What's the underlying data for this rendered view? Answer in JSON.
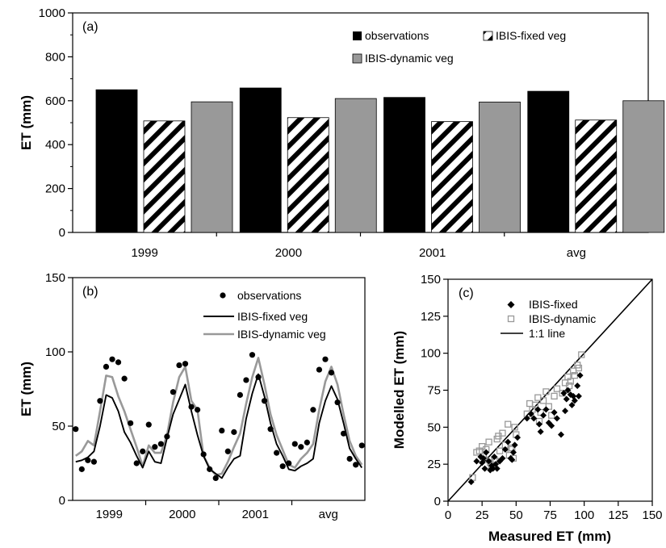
{
  "chart_data": [
    {
      "type": "bar",
      "panel_label": "(a)",
      "ylabel": "ET (mm)",
      "ylim": [
        0,
        1000
      ],
      "yticks": [
        0,
        200,
        400,
        600,
        800,
        1000
      ],
      "categories": [
        "1999",
        "2000",
        "2001",
        "avg"
      ],
      "series": [
        {
          "name": "observations",
          "values": [
            650,
            658,
            615,
            643
          ],
          "color": "#000000",
          "fill": "solid"
        },
        {
          "name": "IBIS-fixed veg",
          "values": [
            508,
            523,
            505,
            512
          ],
          "color": "#000000",
          "fill": "diagonal-hatch"
        },
        {
          "name": "IBIS-dynamic veg",
          "values": [
            595,
            610,
            594,
            600
          ],
          "color": "#999999",
          "fill": "solid"
        }
      ],
      "legend": "top-right"
    },
    {
      "type": "line",
      "panel_label": "(b)",
      "ylabel": "ET (mm)",
      "ylim": [
        0,
        150
      ],
      "yticks": [
        0,
        50,
        100,
        150
      ],
      "xtick_labels": [
        "1999",
        "2000",
        "2001",
        "avg"
      ],
      "x_months": 48,
      "series": [
        {
          "name": "observations",
          "kind": "scatter",
          "color": "#000000",
          "values": [
            48,
            21,
            27,
            26,
            67,
            90,
            95,
            93,
            82,
            52,
            25,
            33,
            51,
            36,
            38,
            43,
            73,
            91,
            92,
            63,
            61,
            31,
            21,
            15,
            47,
            33,
            46,
            71,
            81,
            98,
            83,
            67,
            48,
            32,
            23,
            25,
            38,
            36,
            39,
            61,
            88,
            95,
            86,
            66,
            45,
            28,
            24,
            37
          ]
        },
        {
          "name": "IBIS-fixed veg",
          "kind": "line",
          "color": "#000000",
          "values": [
            26,
            27,
            29,
            33,
            50,
            71,
            69,
            60,
            46,
            39,
            30,
            22,
            33,
            26,
            25,
            42,
            58,
            68,
            78,
            60,
            44,
            30,
            21,
            18,
            15,
            22,
            28,
            30,
            55,
            72,
            85,
            70,
            52,
            38,
            30,
            21,
            20,
            23,
            25,
            28,
            52,
            67,
            77,
            68,
            52,
            35,
            28,
            22
          ]
        },
        {
          "name": "IBIS-dynamic veg",
          "kind": "line",
          "color": "#999999",
          "values": [
            30,
            33,
            40,
            37,
            60,
            84,
            83,
            70,
            60,
            48,
            36,
            23,
            37,
            32,
            32,
            44,
            66,
            83,
            90,
            67,
            61,
            30,
            22,
            17,
            18,
            26,
            36,
            45,
            65,
            83,
            96,
            78,
            58,
            44,
            34,
            24,
            22,
            28,
            32,
            38,
            61,
            80,
            90,
            78,
            58,
            40,
            30,
            24
          ]
        }
      ],
      "legend": "top-right"
    },
    {
      "type": "scatter",
      "panel_label": "(c)",
      "xlabel": "Measured ET (mm)",
      "ylabel": "Modelled ET (mm)",
      "xlim": [
        0,
        150
      ],
      "ylim": [
        0,
        150
      ],
      "xticks": [
        0,
        25,
        50,
        75,
        100,
        125,
        150
      ],
      "yticks": [
        0,
        25,
        50,
        75,
        100,
        125,
        150
      ],
      "series": [
        {
          "name": "IBIS-fixed",
          "marker": "diamond",
          "color": "#000000",
          "points": [
            [
              17,
              13
            ],
            [
              21,
              27
            ],
            [
              24,
              30
            ],
            [
              25,
              26
            ],
            [
              26,
              29
            ],
            [
              27,
              22
            ],
            [
              28,
              33
            ],
            [
              30,
              27
            ],
            [
              31,
              21
            ],
            [
              32,
              24
            ],
            [
              33,
              22
            ],
            [
              34,
              30
            ],
            [
              35,
              25
            ],
            [
              36,
              22
            ],
            [
              38,
              27
            ],
            [
              40,
              29
            ],
            [
              42,
              35
            ],
            [
              44,
              40
            ],
            [
              46,
              29
            ],
            [
              47,
              28
            ],
            [
              48,
              33
            ],
            [
              49,
              38
            ],
            [
              51,
              43
            ],
            [
              58,
              56
            ],
            [
              61,
              59
            ],
            [
              63,
              56
            ],
            [
              66,
              62
            ],
            [
              67,
              52
            ],
            [
              68,
              47
            ],
            [
              70,
              58
            ],
            [
              72,
              62
            ],
            [
              74,
              53
            ],
            [
              76,
              51
            ],
            [
              78,
              60
            ],
            [
              80,
              56
            ],
            [
              83,
              45
            ],
            [
              85,
              73
            ],
            [
              86,
              61
            ],
            [
              87,
              69
            ],
            [
              88,
              75
            ],
            [
              90,
              72
            ],
            [
              91,
              65
            ],
            [
              92,
              71
            ],
            [
              93,
              68
            ],
            [
              95,
              78
            ],
            [
              96,
              71
            ],
            [
              97,
              85
            ]
          ]
        },
        {
          "name": "IBIS-dynamic",
          "marker": "open-square",
          "color": "#999999",
          "points": [
            [
              18,
              16
            ],
            [
              21,
              33
            ],
            [
              23,
              34
            ],
            [
              25,
              37
            ],
            [
              26,
              30
            ],
            [
              27,
              28
            ],
            [
              28,
              35
            ],
            [
              30,
              40
            ],
            [
              31,
              26
            ],
            [
              32,
              24
            ],
            [
              34,
              28
            ],
            [
              35,
              27
            ],
            [
              36,
              42
            ],
            [
              37,
              44
            ],
            [
              38,
              34
            ],
            [
              40,
              46
            ],
            [
              42,
              38
            ],
            [
              44,
              52
            ],
            [
              45,
              31
            ],
            [
              46,
              35
            ],
            [
              47,
              36
            ],
            [
              48,
              29
            ],
            [
              49,
              50
            ],
            [
              50,
              45
            ],
            [
              58,
              59
            ],
            [
              60,
              66
            ],
            [
              62,
              62
            ],
            [
              64,
              65
            ],
            [
              66,
              70
            ],
            [
              67,
              54
            ],
            [
              68,
              60
            ],
            [
              70,
              68
            ],
            [
              72,
              74
            ],
            [
              74,
              64
            ],
            [
              76,
              58
            ],
            [
              78,
              71
            ],
            [
              80,
              76
            ],
            [
              84,
              73
            ],
            [
              86,
              80
            ],
            [
              88,
              84
            ],
            [
              89,
              78
            ],
            [
              90,
              81
            ],
            [
              92,
              88
            ],
            [
              93,
              85
            ],
            [
              95,
              92
            ],
            [
              96,
              90
            ],
            [
              98,
              99
            ]
          ]
        },
        {
          "name": "1:1 line",
          "kind": "line",
          "color": "#000000",
          "points": [
            [
              0,
              0
            ],
            [
              150,
              150
            ]
          ]
        }
      ],
      "legend": "top-left"
    }
  ]
}
